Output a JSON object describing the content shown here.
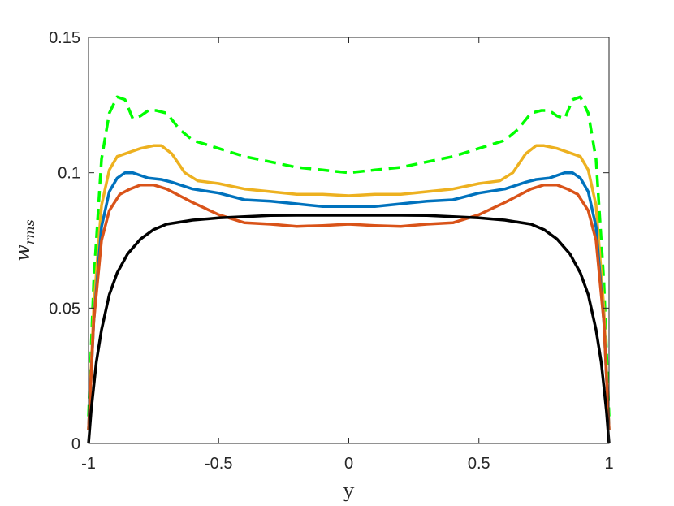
{
  "chart_data": {
    "type": "line",
    "title": "",
    "xlabel": "y",
    "ylabel": {
      "base": "w",
      "subscript": "rms"
    },
    "xlim": [
      -1,
      1
    ],
    "ylim": [
      0,
      0.15
    ],
    "xticks": [
      -1,
      -0.5,
      0,
      0.5,
      1
    ],
    "xtick_labels": [
      "-1",
      "-0.5",
      "0",
      "0.5",
      "1"
    ],
    "yticks": [
      0,
      0.05,
      0.1,
      0.15
    ],
    "ytick_labels": [
      "0",
      "0.05",
      "0.1",
      "0.15"
    ],
    "grid": false,
    "legend": null,
    "series": [
      {
        "color": "#00FF00",
        "dashed": true,
        "x": [
          -1,
          -0.98,
          -0.95,
          -0.92,
          -0.89,
          -0.86,
          -0.83,
          -0.8,
          -0.77,
          -0.74,
          -0.7,
          -0.65,
          -0.6,
          -0.5,
          -0.4,
          -0.3,
          -0.2,
          -0.1,
          0,
          0.1,
          0.2,
          0.3,
          0.4,
          0.5,
          0.6,
          0.65,
          0.7,
          0.74,
          0.77,
          0.8,
          0.83,
          0.86,
          0.89,
          0.92,
          0.95,
          0.98,
          1
        ],
        "y": [
          0.01,
          0.06,
          0.105,
          0.122,
          0.128,
          0.127,
          0.12,
          0.121,
          0.123,
          0.123,
          0.122,
          0.116,
          0.112,
          0.109,
          0.106,
          0.104,
          0.102,
          0.101,
          0.1,
          0.101,
          0.102,
          0.104,
          0.106,
          0.109,
          0.112,
          0.116,
          0.122,
          0.123,
          0.123,
          0.121,
          0.12,
          0.127,
          0.128,
          0.122,
          0.105,
          0.06,
          0.01
        ]
      },
      {
        "color": "#EDB120",
        "dashed": false,
        "x": [
          -1,
          -0.98,
          -0.95,
          -0.92,
          -0.89,
          -0.86,
          -0.83,
          -0.8,
          -0.75,
          -0.72,
          -0.68,
          -0.63,
          -0.58,
          -0.5,
          -0.4,
          -0.3,
          -0.2,
          -0.1,
          0,
          0.1,
          0.2,
          0.3,
          0.4,
          0.5,
          0.58,
          0.63,
          0.68,
          0.72,
          0.75,
          0.8,
          0.83,
          0.86,
          0.89,
          0.92,
          0.95,
          0.98,
          1
        ],
        "y": [
          0.005,
          0.05,
          0.088,
          0.101,
          0.106,
          0.107,
          0.108,
          0.109,
          0.11,
          0.11,
          0.107,
          0.1,
          0.097,
          0.096,
          0.094,
          0.093,
          0.092,
          0.092,
          0.0915,
          0.092,
          0.092,
          0.093,
          0.094,
          0.096,
          0.097,
          0.1,
          0.107,
          0.11,
          0.11,
          0.109,
          0.108,
          0.107,
          0.106,
          0.101,
          0.088,
          0.05,
          0.005
        ]
      },
      {
        "color": "#0072BD",
        "dashed": false,
        "x": [
          -1,
          -0.98,
          -0.95,
          -0.92,
          -0.89,
          -0.86,
          -0.83,
          -0.8,
          -0.77,
          -0.72,
          -0.68,
          -0.6,
          -0.5,
          -0.4,
          -0.3,
          -0.2,
          -0.1,
          0,
          0.1,
          0.2,
          0.3,
          0.4,
          0.5,
          0.6,
          0.68,
          0.72,
          0.77,
          0.8,
          0.83,
          0.86,
          0.89,
          0.92,
          0.95,
          0.98,
          1
        ],
        "y": [
          0.005,
          0.045,
          0.08,
          0.093,
          0.098,
          0.1,
          0.1,
          0.099,
          0.098,
          0.0975,
          0.0965,
          0.094,
          0.0925,
          0.09,
          0.0895,
          0.0885,
          0.0875,
          0.0875,
          0.0875,
          0.0885,
          0.0895,
          0.09,
          0.0925,
          0.094,
          0.0965,
          0.0975,
          0.098,
          0.099,
          0.1,
          0.1,
          0.098,
          0.093,
          0.08,
          0.045,
          0.005
        ]
      },
      {
        "color": "#D95319",
        "dashed": false,
        "x": [
          -1,
          -0.98,
          -0.95,
          -0.92,
          -0.88,
          -0.84,
          -0.8,
          -0.75,
          -0.7,
          -0.65,
          -0.6,
          -0.5,
          -0.4,
          -0.3,
          -0.2,
          -0.1,
          0,
          0.1,
          0.2,
          0.3,
          0.4,
          0.5,
          0.6,
          0.65,
          0.7,
          0.75,
          0.8,
          0.84,
          0.88,
          0.92,
          0.95,
          0.98,
          1
        ],
        "y": [
          0.005,
          0.045,
          0.075,
          0.086,
          0.092,
          0.094,
          0.0955,
          0.0955,
          0.094,
          0.0915,
          0.089,
          0.0845,
          0.0815,
          0.081,
          0.0802,
          0.0805,
          0.081,
          0.0805,
          0.0802,
          0.081,
          0.0815,
          0.0845,
          0.089,
          0.0915,
          0.094,
          0.0955,
          0.0955,
          0.094,
          0.092,
          0.086,
          0.075,
          0.045,
          0.005
        ]
      },
      {
        "color": "#000000",
        "dashed": false,
        "x": [
          -1,
          -0.99,
          -0.97,
          -0.95,
          -0.92,
          -0.89,
          -0.85,
          -0.8,
          -0.75,
          -0.7,
          -0.6,
          -0.5,
          -0.4,
          -0.3,
          -0.2,
          -0.1,
          0,
          0.1,
          0.2,
          0.3,
          0.4,
          0.5,
          0.6,
          0.7,
          0.75,
          0.8,
          0.85,
          0.89,
          0.92,
          0.95,
          0.97,
          0.99,
          1
        ],
        "y": [
          0,
          0.012,
          0.03,
          0.042,
          0.055,
          0.063,
          0.07,
          0.0755,
          0.079,
          0.081,
          0.0825,
          0.0833,
          0.0838,
          0.0842,
          0.0843,
          0.0843,
          0.0843,
          0.0843,
          0.0843,
          0.0842,
          0.0838,
          0.0833,
          0.0825,
          0.081,
          0.079,
          0.0755,
          0.07,
          0.063,
          0.055,
          0.042,
          0.03,
          0.012,
          0
        ]
      }
    ]
  }
}
